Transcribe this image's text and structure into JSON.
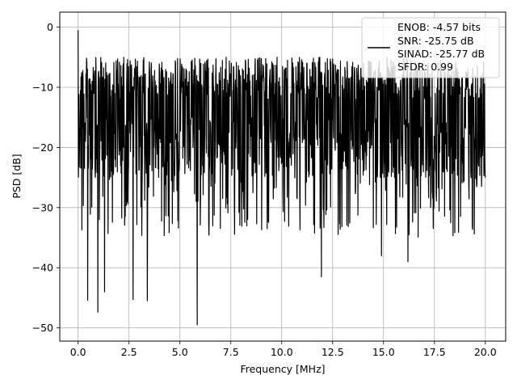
{
  "chart_data": {
    "type": "line",
    "title": "",
    "xlabel": "Frequency [MHz]",
    "ylabel": "PSD [dB]",
    "xlim": [
      -0.9,
      21.0
    ],
    "ylim": [
      -52.2,
      2.5
    ],
    "x_ticks": [
      0.0,
      2.5,
      5.0,
      7.5,
      10.0,
      12.5,
      15.0,
      17.5,
      20.0
    ],
    "x_tick_labels": [
      "0.0",
      "2.5",
      "5.0",
      "7.5",
      "10.0",
      "12.5",
      "15.0",
      "17.5",
      "20.0"
    ],
    "y_ticks": [
      0,
      -10,
      -20,
      -30,
      -40,
      -50
    ],
    "y_tick_labels": [
      "0",
      "−10",
      "−20",
      "−30",
      "−40",
      "−50"
    ],
    "grid": true,
    "legend_position": "top-right",
    "line_color": "#000000",
    "legend_line": {
      "color": "#000000",
      "entries": [
        "ENOB: -4.57 bits",
        "SNR: -25.75 dB",
        "SINAD: -25.77 dB",
        "SFDR: 0.99"
      ]
    },
    "series": [
      {
        "x_range": [
          0.0,
          20.0
        ],
        "baseline_db": -15,
        "upper_envelope_db": -5,
        "notable_points": [
          {
            "x": 0.0,
            "y": -0.5
          },
          {
            "x": 0.47,
            "y": -45.4
          },
          {
            "x": 0.97,
            "y": -47.4
          },
          {
            "x": 1.3,
            "y": -44.0
          },
          {
            "x": 2.7,
            "y": -45.3
          },
          {
            "x": 3.4,
            "y": -45.5
          },
          {
            "x": 5.85,
            "y": -49.5
          },
          {
            "x": 11.95,
            "y": -41.5
          },
          {
            "x": 14.9,
            "y": -38.0
          },
          {
            "x": 16.2,
            "y": -39.0
          },
          {
            "x": 20.0,
            "y": -25.0
          }
        ]
      }
    ]
  }
}
